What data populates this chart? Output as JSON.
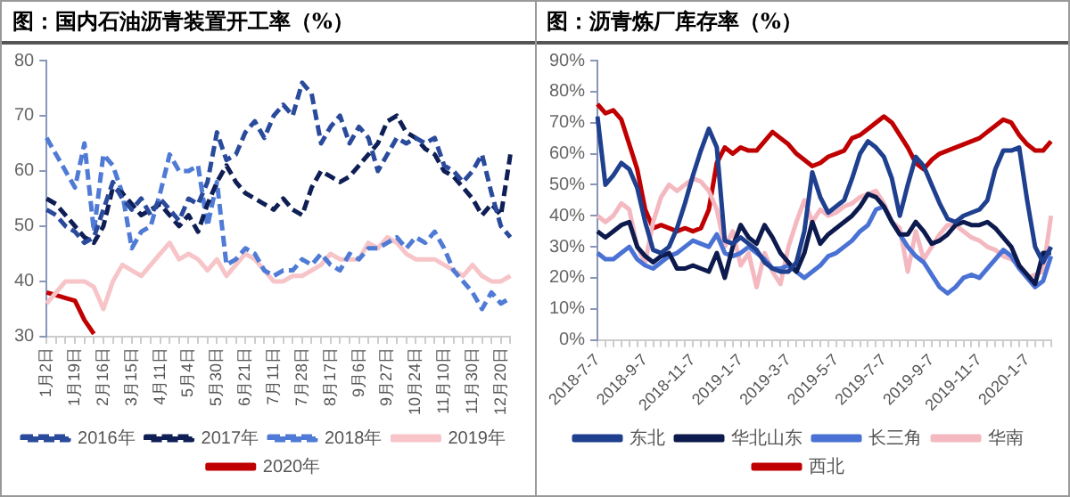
{
  "chart_data": [
    {
      "type": "line",
      "title": "图：国内石油沥青装置开工率（%）",
      "categories": [
        "1月2日",
        null,
        null,
        "1月19日",
        null,
        null,
        "2月16日",
        null,
        null,
        "3月15日",
        null,
        null,
        "4月11日",
        null,
        null,
        "5月4日",
        null,
        null,
        "5月30日",
        null,
        null,
        "6月21日",
        null,
        null,
        "7月11日",
        null,
        null,
        "7月28日",
        null,
        null,
        "8月17日",
        null,
        null,
        "9月6日",
        null,
        null,
        "9月27日",
        null,
        null,
        "10月24日",
        null,
        null,
        "11月10日",
        null,
        null,
        "11月30日",
        null,
        null,
        "12月20日",
        null
      ],
      "ylim": [
        30,
        80
      ],
      "yticks": [
        30,
        40,
        50,
        60,
        70,
        80
      ],
      "legend": "bottom",
      "marker": "none",
      "series": [
        {
          "name": "2016年",
          "color": "#2a4a9c",
          "line_style": "dashed",
          "values": [
            53,
            52,
            50,
            49,
            47,
            48,
            53,
            58,
            55,
            53,
            55,
            52,
            55,
            53,
            51,
            55,
            54,
            58,
            67,
            62,
            63,
            67,
            69,
            66,
            70,
            72,
            70,
            76,
            74,
            65,
            68,
            70,
            65,
            68,
            66,
            60,
            63,
            66,
            65,
            66,
            65,
            66,
            61,
            60,
            58,
            60,
            63,
            56,
            50,
            48
          ]
        },
        {
          "name": "2017年",
          "color": "#0f1f55",
          "line_style": "dashed",
          "values": [
            55,
            54,
            52,
            50,
            48,
            47,
            50,
            57,
            56,
            54,
            52,
            53,
            54,
            52,
            50,
            52,
            49,
            54,
            58,
            61,
            58,
            56,
            55,
            54,
            53,
            55,
            53,
            52,
            57,
            60,
            59,
            58,
            59,
            61,
            63,
            65,
            69,
            70,
            67,
            66,
            64,
            63,
            60,
            59,
            57,
            55,
            52,
            54,
            52,
            63
          ]
        },
        {
          "name": "2018年",
          "color": "#4f7bd6",
          "line_style": "dashed",
          "values": [
            66,
            63,
            60,
            57,
            65,
            49,
            63,
            61,
            56,
            46,
            49,
            50,
            56,
            63,
            60,
            60,
            61,
            50,
            58,
            43,
            44,
            46,
            45,
            42,
            41,
            42,
            42,
            44,
            43,
            45,
            43,
            42,
            45,
            44,
            46,
            46,
            47,
            48,
            46,
            48,
            47,
            49,
            46,
            42,
            40,
            38,
            35,
            38,
            36,
            37
          ]
        },
        {
          "name": "2019年",
          "color": "#f7c4c8",
          "line_style": "solid",
          "values": [
            36,
            38,
            40,
            40,
            40,
            39,
            35,
            40,
            43,
            42,
            41,
            43,
            45,
            47,
            44,
            45,
            44,
            42,
            44,
            41,
            43,
            45,
            44,
            42,
            40,
            40,
            41,
            41,
            42,
            43,
            45,
            44,
            44,
            44,
            47,
            46,
            48,
            47,
            45,
            44,
            44,
            44,
            43,
            42,
            41,
            43,
            41,
            40,
            40,
            41
          ]
        },
        {
          "name": "2020年",
          "color": "#c00000",
          "line_style": "solid",
          "values": [
            38,
            37.5,
            37,
            36.5,
            33,
            30.5,
            null,
            null,
            null,
            null,
            null,
            null,
            null,
            null,
            null,
            null,
            null,
            null,
            null,
            null,
            null,
            null,
            null,
            null,
            null,
            null,
            null,
            null,
            null,
            null,
            null,
            null,
            null,
            null,
            null,
            null,
            null,
            null,
            null,
            null,
            null,
            null,
            null,
            null,
            null,
            null,
            null,
            null,
            null,
            null
          ]
        }
      ]
    },
    {
      "type": "line",
      "title": "图：沥青炼厂库存率（%）",
      "categories": [
        "2018-7-7",
        null,
        null,
        null,
        null,
        null,
        "2018-9-7",
        null,
        null,
        null,
        null,
        null,
        "2018-11-7",
        null,
        null,
        null,
        null,
        null,
        "2019-1-7",
        null,
        null,
        null,
        null,
        null,
        "2019-3-7",
        null,
        null,
        null,
        null,
        null,
        "2019-5-7",
        null,
        null,
        null,
        null,
        null,
        "2019-7-7",
        null,
        null,
        null,
        null,
        null,
        "2019-9-7",
        null,
        null,
        null,
        null,
        null,
        "2019-11-7",
        null,
        null,
        null,
        null,
        null,
        "2020-1-7",
        null,
        null,
        null
      ],
      "ylim": [
        0,
        90
      ],
      "yticks": [
        {
          "value": 0,
          "label": "0%"
        },
        {
          "value": 10,
          "label": "10%"
        },
        {
          "value": 20,
          "label": "20%"
        },
        {
          "value": 30,
          "label": "30%"
        },
        {
          "value": 40,
          "label": "40%"
        },
        {
          "value": 50,
          "label": "50%"
        },
        {
          "value": 60,
          "label": "60%"
        },
        {
          "value": 70,
          "label": "70%"
        },
        {
          "value": 80,
          "label": "80%"
        },
        {
          "value": 90,
          "label": "90%"
        }
      ],
      "legend": "bottom",
      "marker": "none",
      "series": [
        {
          "name": "东北",
          "color": "#1f3f8f",
          "values": [
            72,
            50,
            53,
            57,
            55,
            49,
            38,
            29,
            28,
            30,
            36,
            44,
            53,
            61,
            68,
            62,
            32,
            31,
            33,
            31,
            29,
            25,
            23,
            22,
            22,
            25,
            35,
            54,
            46,
            41,
            43,
            45,
            52,
            60,
            64,
            62,
            59,
            52,
            40,
            50,
            59,
            56,
            50,
            44,
            39,
            38,
            40,
            41,
            42,
            45,
            55,
            61,
            61,
            62,
            45,
            30,
            25,
            30
          ]
        },
        {
          "name": "华北山东",
          "color": "#0d1a4d",
          "values": [
            35,
            33,
            35,
            37,
            38,
            30,
            27,
            25,
            27,
            28,
            23,
            23,
            24,
            23,
            22,
            28,
            20,
            30,
            37,
            33,
            31,
            37,
            33,
            28,
            25,
            22,
            28,
            38,
            31,
            34,
            36,
            38,
            40,
            43,
            47,
            46,
            43,
            38,
            34,
            34,
            38,
            35,
            31,
            32,
            34,
            37,
            38,
            37,
            37,
            38,
            36,
            33,
            30,
            24,
            21,
            18,
            28,
            28
          ]
        },
        {
          "name": "长三角",
          "color": "#4a72d4",
          "values": [
            28,
            26,
            26,
            28,
            30,
            26,
            24,
            23,
            25,
            27,
            28,
            30,
            32,
            31,
            30,
            34,
            28,
            27,
            28,
            30,
            28,
            26,
            23,
            23,
            24,
            22,
            20,
            22,
            24,
            27,
            28,
            30,
            32,
            35,
            37,
            42,
            43,
            38,
            34,
            30,
            27,
            25,
            21,
            17,
            15,
            17,
            20,
            21,
            20,
            23,
            26,
            29,
            27,
            23,
            20,
            17,
            19,
            27
          ]
        },
        {
          "name": "华南",
          "color": "#f4b8c0",
          "values": [
            40,
            38,
            40,
            44,
            42,
            30,
            25,
            38,
            46,
            50,
            48,
            50,
            52,
            51,
            48,
            42,
            30,
            35,
            24,
            28,
            17,
            28,
            22,
            18,
            30,
            38,
            45,
            38,
            42,
            40,
            41,
            43,
            44,
            46,
            47,
            48,
            44,
            38,
            36,
            22,
            35,
            26,
            30,
            34,
            37,
            37,
            35,
            33,
            32,
            30,
            29,
            27,
            26,
            24,
            20,
            21,
            22,
            40
          ]
        },
        {
          "name": "西北",
          "color": "#c00000",
          "values": [
            76,
            73,
            74,
            71,
            63,
            55,
            42,
            36,
            37,
            36,
            35,
            36,
            35,
            36,
            42,
            57,
            62,
            60,
            62,
            61,
            61,
            64,
            67,
            65,
            63,
            60,
            58,
            56,
            57,
            59,
            60,
            61,
            65,
            66,
            68,
            70,
            72,
            70,
            66,
            62,
            57,
            55,
            58,
            60,
            61,
            62,
            63,
            64,
            65,
            67,
            69,
            71,
            70,
            66,
            63,
            61,
            61,
            64
          ]
        }
      ]
    }
  ]
}
